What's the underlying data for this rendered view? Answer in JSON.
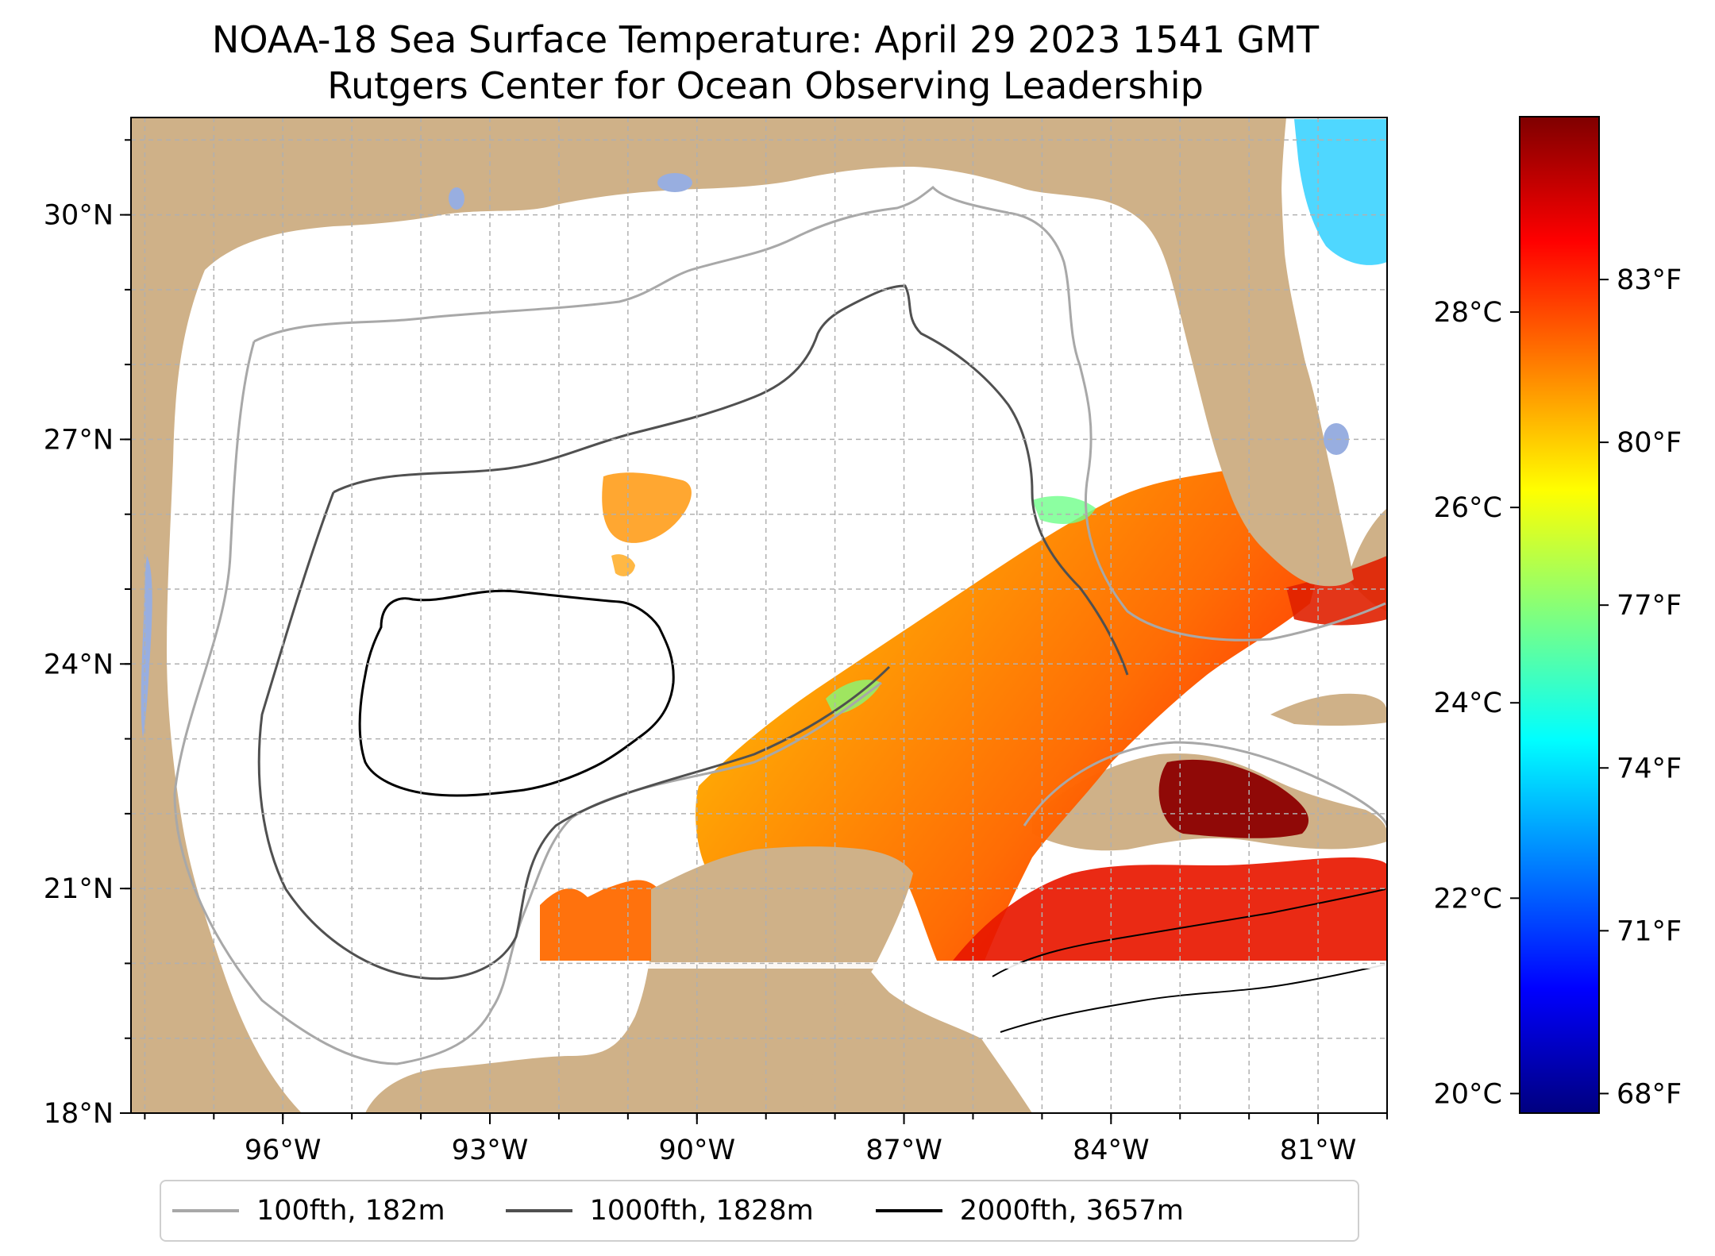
{
  "title": {
    "line1": "NOAA-18 Sea Surface Temperature: April 29 2023 1541 GMT",
    "line2": "Rutgers Center for Ocean Observing Leadership"
  },
  "map": {
    "extent": {
      "lon_min": -98.2,
      "lon_max": -80.0,
      "lat_min": 18.0,
      "lat_max": 31.3
    },
    "lat_ticks": [
      {
        "label": "30°N",
        "lat": 30
      },
      {
        "label": "27°N",
        "lat": 27
      },
      {
        "label": "24°N",
        "lat": 24
      },
      {
        "label": "21°N",
        "lat": 21
      },
      {
        "label": "18°N",
        "lat": 18
      }
    ],
    "lon_ticks": [
      {
        "label": "96°W",
        "lon": -96
      },
      {
        "label": "93°W",
        "lon": -93
      },
      {
        "label": "90°W",
        "lon": -90
      },
      {
        "label": "87°W",
        "lon": -87
      },
      {
        "label": "84°W",
        "lon": -84
      },
      {
        "label": "81°W",
        "lon": -81
      }
    ],
    "colors": {
      "land": "#cfb188",
      "water_body": "#98aee0",
      "gridline": "#b0b0b0",
      "coastline": "#000000"
    }
  },
  "colorbar": {
    "celsius_range": [
      19.8,
      30.0
    ],
    "celsius_ticks": [
      {
        "label": "28°C",
        "value": 28
      },
      {
        "label": "26°C",
        "value": 26
      },
      {
        "label": "24°C",
        "value": 24
      },
      {
        "label": "22°C",
        "value": 22
      },
      {
        "label": "20°C",
        "value": 20
      }
    ],
    "fahrenheit_ticks": [
      {
        "label": "83°F",
        "value": 83
      },
      {
        "label": "80°F",
        "value": 80
      },
      {
        "label": "77°F",
        "value": 77
      },
      {
        "label": "74°F",
        "value": 74
      },
      {
        "label": "71°F",
        "value": 71
      },
      {
        "label": "68°F",
        "value": 68
      }
    ],
    "colormap": [
      "#00007f",
      "#0000ff",
      "#007fff",
      "#00ffff",
      "#7fff7f",
      "#ffff00",
      "#ff7f00",
      "#ff0000",
      "#7f0000"
    ]
  },
  "legend": {
    "items": [
      {
        "label": "100fth, 182m",
        "color": "#a8a8a8"
      },
      {
        "label": "1000fth, 1828m",
        "color": "#505050"
      },
      {
        "label": "2000fth, 3657m",
        "color": "#000000"
      }
    ]
  }
}
